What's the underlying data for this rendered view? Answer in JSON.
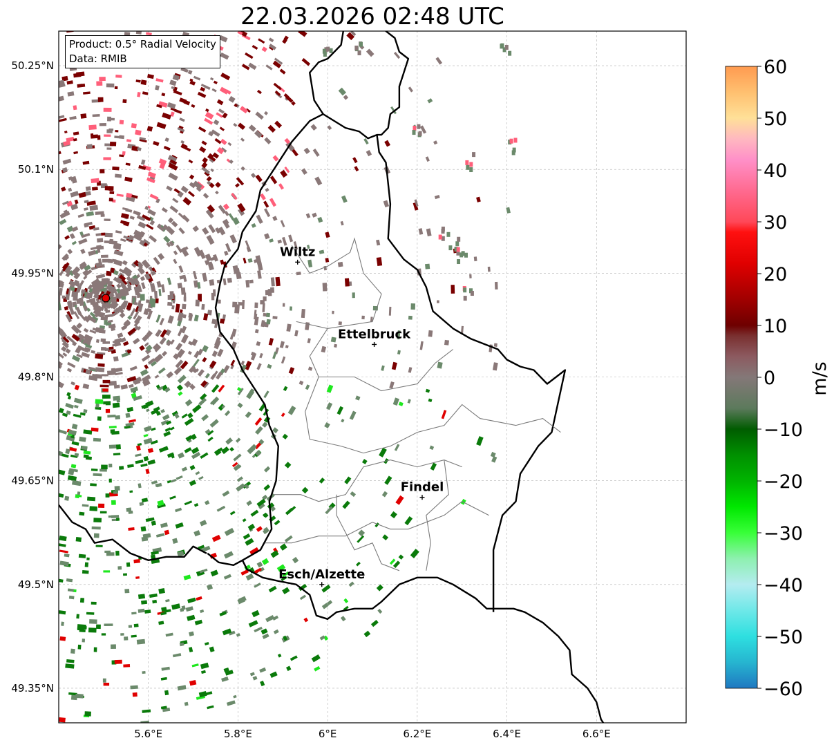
{
  "title": "22.03.2026 02:48 UTC",
  "info": {
    "product": "Product: 0.5° Radial Velocity",
    "data": "Data: RMIB"
  },
  "map": {
    "lon_range": [
      5.4,
      6.8
    ],
    "lat_range": [
      49.3,
      50.3
    ],
    "lat_ticks": [
      {
        "value": 50.25,
        "label": "50.25°N"
      },
      {
        "value": 50.1,
        "label": "50.1°N"
      },
      {
        "value": 49.95,
        "label": "49.95°N"
      },
      {
        "value": 49.8,
        "label": "49.8°N"
      },
      {
        "value": 49.65,
        "label": "49.65°N"
      },
      {
        "value": 49.5,
        "label": "49.5°N"
      },
      {
        "value": 49.35,
        "label": "49.35°N"
      }
    ],
    "lon_ticks": [
      {
        "value": 5.6,
        "label": "5.6°E"
      },
      {
        "value": 5.8,
        "label": "5.8°E"
      },
      {
        "value": 6.0,
        "label": "6°E"
      },
      {
        "value": 6.2,
        "label": "6.2°E"
      },
      {
        "value": 6.4,
        "label": "6.4°E"
      },
      {
        "value": 6.6,
        "label": "6.6°E"
      }
    ],
    "grid": true,
    "radar_site": {
      "lon": 5.505,
      "lat": 49.914
    },
    "cities": [
      {
        "name": "Wiltz",
        "lon": 5.933,
        "lat": 49.966
      },
      {
        "name": "Ettelbruck",
        "lon": 6.104,
        "lat": 49.847
      },
      {
        "name": "Findel",
        "lon": 6.211,
        "lat": 49.626
      },
      {
        "name": "Esch/Alzette",
        "lon": 5.987,
        "lat": 49.5
      }
    ],
    "country_border": [
      [
        5.732,
        49.545
      ],
      [
        5.757,
        49.532
      ],
      [
        5.79,
        49.528
      ],
      [
        5.81,
        49.535
      ],
      [
        5.82,
        49.522
      ],
      [
        5.855,
        49.51
      ],
      [
        5.89,
        49.505
      ],
      [
        5.93,
        49.5
      ],
      [
        5.96,
        49.485
      ],
      [
        5.975,
        49.455
      ],
      [
        6.0,
        49.45
      ],
      [
        6.02,
        49.46
      ],
      [
        6.06,
        49.465
      ],
      [
        6.1,
        49.465
      ],
      [
        6.12,
        49.475
      ],
      [
        6.16,
        49.5
      ],
      [
        6.2,
        49.51
      ],
      [
        6.245,
        49.51
      ],
      [
        6.28,
        49.5
      ],
      [
        6.33,
        49.48
      ],
      [
        6.355,
        49.465
      ],
      [
        6.37,
        49.465
      ],
      [
        6.415,
        49.465
      ],
      [
        6.44,
        49.46
      ],
      [
        6.48,
        49.445
      ],
      [
        6.515,
        49.425
      ],
      [
        6.54,
        49.405
      ],
      [
        6.545,
        49.37
      ],
      [
        6.58,
        49.35
      ],
      [
        6.6,
        49.33
      ],
      [
        6.61,
        49.305
      ],
      [
        6.625,
        49.29
      ]
    ],
    "lux_border": [
      [
        5.81,
        49.535
      ],
      [
        5.85,
        49.55
      ],
      [
        5.875,
        49.58
      ],
      [
        5.87,
        49.62
      ],
      [
        5.885,
        49.65
      ],
      [
        5.89,
        49.7
      ],
      [
        5.87,
        49.73
      ],
      [
        5.86,
        49.76
      ],
      [
        5.83,
        49.79
      ],
      [
        5.81,
        49.81
      ],
      [
        5.79,
        49.84
      ],
      [
        5.76,
        49.865
      ],
      [
        5.75,
        49.9
      ],
      [
        5.76,
        49.935
      ],
      [
        5.77,
        49.96
      ],
      [
        5.8,
        49.985
      ],
      [
        5.81,
        50.01
      ],
      [
        5.84,
        50.04
      ],
      [
        5.85,
        50.07
      ],
      [
        5.87,
        50.09
      ],
      [
        5.89,
        50.11
      ],
      [
        5.92,
        50.14
      ],
      [
        5.96,
        50.17
      ],
      [
        5.99,
        50.18
      ],
      [
        6.04,
        50.16
      ],
      [
        6.07,
        50.155
      ],
      [
        6.09,
        50.145
      ],
      [
        6.11,
        50.15
      ],
      [
        6.115,
        50.125
      ],
      [
        6.13,
        50.11
      ],
      [
        6.14,
        50.05
      ],
      [
        6.135,
        50.0
      ],
      [
        6.17,
        49.97
      ],
      [
        6.2,
        49.955
      ],
      [
        6.22,
        49.93
      ],
      [
        6.235,
        49.895
      ],
      [
        6.28,
        49.87
      ],
      [
        6.32,
        49.855
      ],
      [
        6.36,
        49.845
      ],
      [
        6.38,
        49.84
      ],
      [
        6.4,
        49.825
      ],
      [
        6.43,
        49.815
      ],
      [
        6.46,
        49.81
      ],
      [
        6.49,
        49.79
      ],
      [
        6.53,
        49.81
      ],
      [
        6.52,
        49.78
      ],
      [
        6.51,
        49.75
      ],
      [
        6.5,
        49.72
      ],
      [
        6.47,
        49.7
      ],
      [
        6.43,
        49.66
      ],
      [
        6.42,
        49.62
      ],
      [
        6.39,
        49.6
      ],
      [
        6.37,
        49.55
      ],
      [
        6.37,
        49.46
      ]
    ],
    "east_border": [
      [
        6.022,
        50.31
      ],
      [
        6.035,
        50.3
      ],
      [
        6.03,
        50.28
      ],
      [
        6.0,
        50.26
      ],
      [
        5.98,
        50.255
      ],
      [
        5.96,
        50.24
      ],
      [
        5.97,
        50.2
      ],
      [
        5.99,
        50.18
      ]
    ],
    "east_border2": [
      [
        6.12,
        50.31
      ],
      [
        6.13,
        50.3
      ],
      [
        6.15,
        50.29
      ],
      [
        6.16,
        50.27
      ],
      [
        6.18,
        50.26
      ],
      [
        6.17,
        50.24
      ],
      [
        6.16,
        50.22
      ],
      [
        6.16,
        50.19
      ],
      [
        6.14,
        50.18
      ],
      [
        6.135,
        50.16
      ],
      [
        6.12,
        50.15
      ],
      [
        6.11,
        50.15
      ]
    ],
    "west_border": [
      [
        5.4,
        49.615
      ],
      [
        5.43,
        49.59
      ],
      [
        5.46,
        49.58
      ],
      [
        5.48,
        49.56
      ],
      [
        5.52,
        49.565
      ],
      [
        5.56,
        49.545
      ],
      [
        5.6,
        49.535
      ],
      [
        5.64,
        49.54
      ],
      [
        5.68,
        49.54
      ],
      [
        5.7,
        49.555
      ],
      [
        5.73,
        49.545
      ]
    ]
  },
  "radar_colors": {
    "dark_red": "#7a0000",
    "gray_brown": "#8a7878",
    "gray_green": "#6b8a6b",
    "green": "#0a7a0a",
    "bright_green": "#1ee81e",
    "pink": "#ff5f7a",
    "light_cyan": "#a8e8ee",
    "red": "#e00000"
  },
  "colorbar": {
    "label": "m/s",
    "vmin": -60,
    "vmax": 60,
    "ticks": [
      {
        "value": 60,
        "label": "60"
      },
      {
        "value": 50,
        "label": "50"
      },
      {
        "value": 40,
        "label": "40"
      },
      {
        "value": 30,
        "label": "30"
      },
      {
        "value": 20,
        "label": "20"
      },
      {
        "value": 10,
        "label": "10"
      },
      {
        "value": 0,
        "label": "0"
      },
      {
        "value": -10,
        "label": "−10"
      },
      {
        "value": -20,
        "label": "−20"
      },
      {
        "value": -30,
        "label": "−30"
      },
      {
        "value": -40,
        "label": "−40"
      },
      {
        "value": -50,
        "label": "−50"
      },
      {
        "value": -60,
        "label": "−60"
      }
    ],
    "stops": [
      {
        "value": -60,
        "color": "#1f78c1"
      },
      {
        "value": -55,
        "color": "#26b5d0"
      },
      {
        "value": -50,
        "color": "#2edfe0"
      },
      {
        "value": -45,
        "color": "#6ee8e8"
      },
      {
        "value": -40,
        "color": "#b4ecf0"
      },
      {
        "value": -35,
        "color": "#8ef0b0"
      },
      {
        "value": -30,
        "color": "#38ff38"
      },
      {
        "value": -25,
        "color": "#00e800"
      },
      {
        "value": -20,
        "color": "#00b400"
      },
      {
        "value": -15,
        "color": "#009000"
      },
      {
        "value": -10,
        "color": "#005c00"
      },
      {
        "value": -6,
        "color": "#5c7a5c"
      },
      {
        "value": 0,
        "color": "#847878"
      },
      {
        "value": 4,
        "color": "#8c5a60"
      },
      {
        "value": 8,
        "color": "#7a3030"
      },
      {
        "value": 10,
        "color": "#6e0000"
      },
      {
        "value": 15,
        "color": "#a00000"
      },
      {
        "value": 22,
        "color": "#e00000"
      },
      {
        "value": 28,
        "color": "#ff1010"
      },
      {
        "value": 30,
        "color": "#ff4858"
      },
      {
        "value": 36,
        "color": "#ff6a90"
      },
      {
        "value": 42,
        "color": "#ff90c8"
      },
      {
        "value": 46,
        "color": "#ffb8c0"
      },
      {
        "value": 50,
        "color": "#ffe098"
      },
      {
        "value": 55,
        "color": "#ffc070"
      },
      {
        "value": 60,
        "color": "#ff9a50"
      }
    ]
  }
}
